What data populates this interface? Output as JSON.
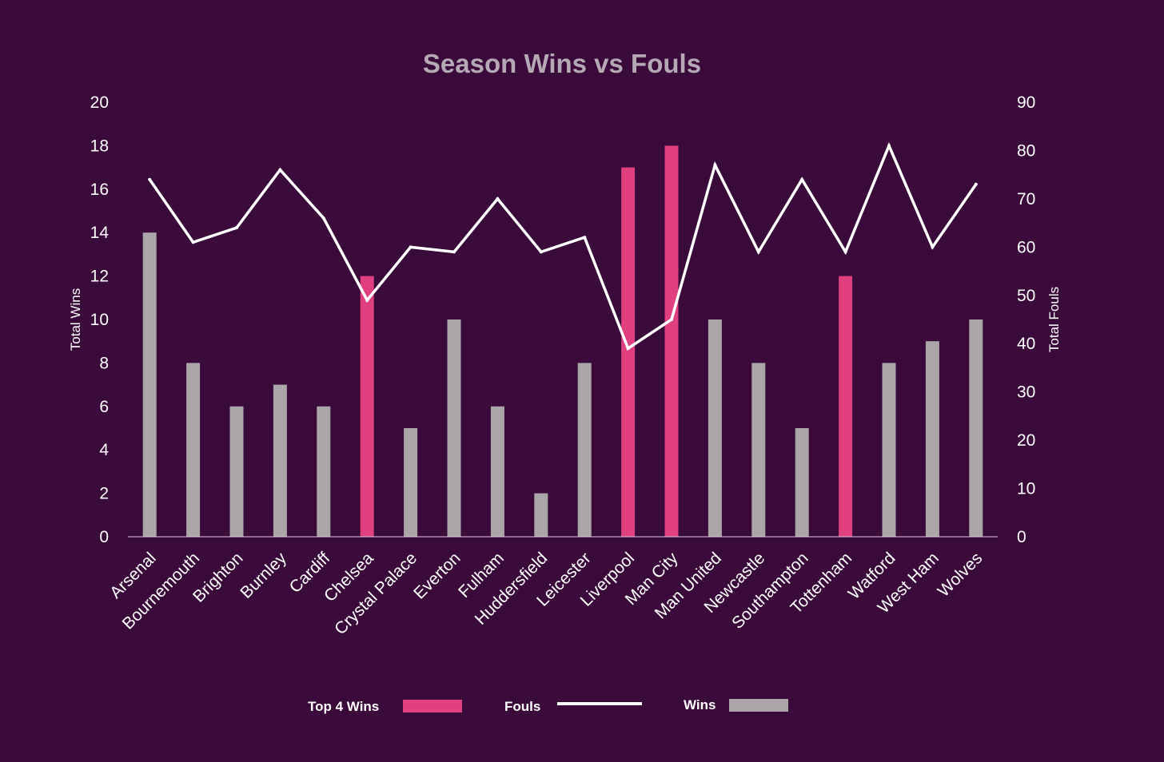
{
  "chart_data": {
    "type": "bar",
    "title": "Season Wins vs Fouls",
    "categories": [
      "Arsenal",
      "Bournemouth",
      "Brighton",
      "Burnley",
      "Cardiff",
      "Chelsea",
      "Crystal Palace",
      "Everton",
      "Fulham",
      "Huddersfield",
      "Leicester",
      "Liverpool",
      "Man City",
      "Man United",
      "Newcastle",
      "Southampton",
      "Tottenham",
      "Watford",
      "West Ham",
      "Wolves"
    ],
    "series": [
      {
        "name": "Top 4 Wins",
        "type": "bar",
        "axis": "left",
        "color": "#e0407f",
        "values": [
          null,
          null,
          null,
          null,
          null,
          12,
          null,
          null,
          null,
          null,
          null,
          17,
          18,
          null,
          null,
          null,
          12,
          null,
          null,
          null
        ]
      },
      {
        "name": "Wins",
        "type": "bar",
        "axis": "left",
        "color": "#aba4a8",
        "values": [
          14,
          8,
          6,
          7,
          6,
          null,
          5,
          10,
          6,
          2,
          8,
          null,
          null,
          10,
          8,
          5,
          null,
          8,
          9,
          10
        ]
      },
      {
        "name": "Fouls",
        "type": "line",
        "axis": "right",
        "color": "#ffffff",
        "values": [
          74,
          61,
          64,
          76,
          66,
          49,
          60,
          59,
          70,
          59,
          62,
          39,
          45,
          77,
          59,
          74,
          59,
          81,
          60,
          73
        ]
      }
    ],
    "ylabel": "Total Wins",
    "ylabel_right": "Total  Fouls",
    "ylim": [
      0,
      20
    ],
    "yticks": [
      0,
      2,
      4,
      6,
      8,
      10,
      12,
      14,
      16,
      18,
      20
    ],
    "ylim_right": [
      0,
      90
    ],
    "yticks_right": [
      0,
      10,
      20,
      30,
      40,
      50,
      60,
      70,
      80,
      90
    ],
    "grid": false,
    "legend_position": "bottom",
    "legend": [
      {
        "label": "Top 4 Wins",
        "kind": "bar",
        "color": "#e0407f"
      },
      {
        "label": "Fouls",
        "kind": "line",
        "color": "#ffffff"
      },
      {
        "label": "Wins",
        "kind": "bar",
        "color": "#aba4a8"
      }
    ]
  }
}
